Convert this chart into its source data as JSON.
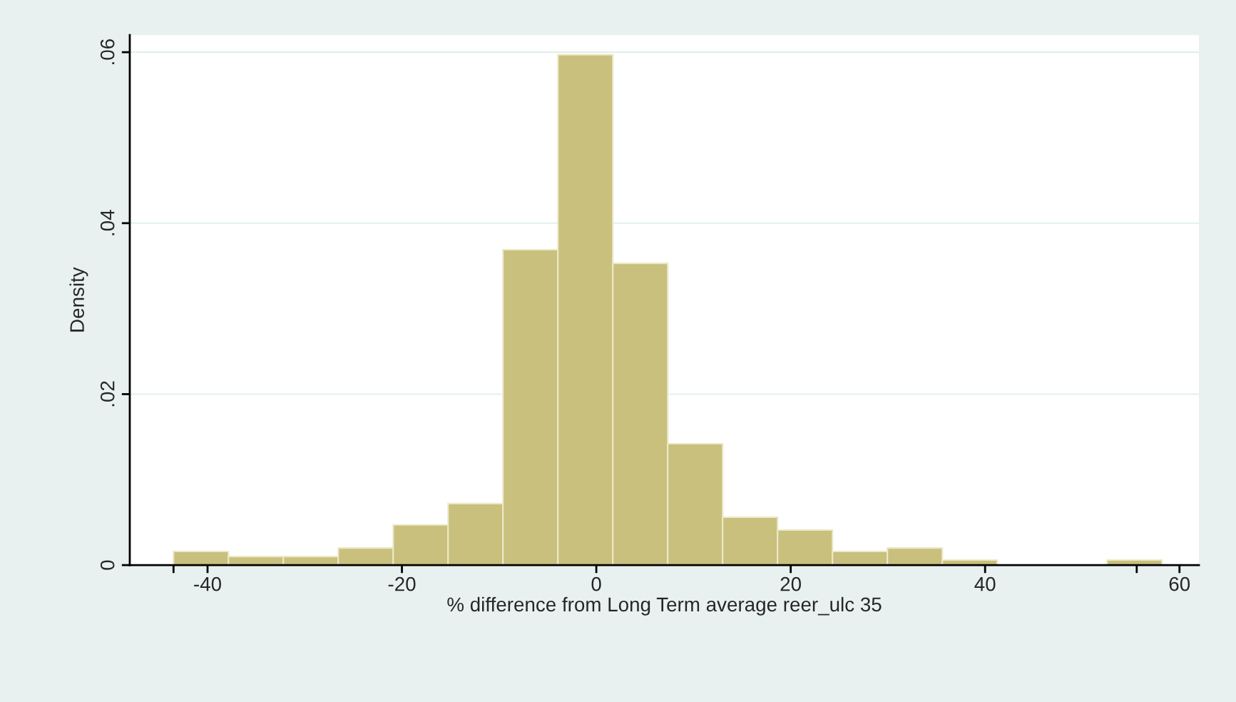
{
  "chart_data": {
    "type": "histogram",
    "xlabel": "% difference from Long Term average reer_ulc 35",
    "ylabel": "Density",
    "bins": [
      -43.5,
      -37.85,
      -32.2,
      -26.55,
      -20.9,
      -15.25,
      -9.6,
      -3.95,
      1.7,
      7.35,
      13.0,
      18.65,
      24.3,
      29.95,
      35.6,
      41.25,
      46.9,
      52.55,
      58.2
    ],
    "values": [
      0.0016,
      0.001,
      0.001,
      0.002,
      0.0047,
      0.0072,
      0.0369,
      0.0597,
      0.0353,
      0.0142,
      0.0056,
      0.0041,
      0.0016,
      0.002,
      0.0006,
      0,
      0,
      0.0006
    ],
    "color": "#c8c07c",
    "xlim": [
      -48,
      62
    ],
    "ylim": [
      0,
      0.062
    ],
    "xticks": [
      {
        "value": -43.5,
        "label": null
      },
      -40,
      -20,
      0,
      20,
      40,
      {
        "value": 55.6,
        "label": null
      },
      60
    ],
    "yticks": [
      0,
      {
        "value": 0.02,
        "label": ".02"
      },
      {
        "value": 0.04,
        "label": ".04"
      },
      {
        "value": 0.06,
        "label": ".06"
      }
    ],
    "grid": "y"
  }
}
